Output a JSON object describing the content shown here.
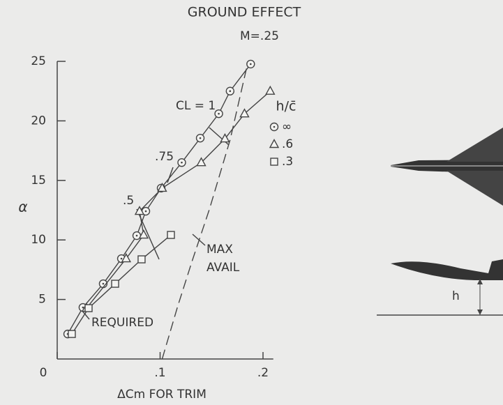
{
  "chart_data": {
    "type": "line",
    "title": "GROUND EFFECT",
    "subtitle": "M=.25",
    "x_label": "ΔCm FOR TRIM",
    "y_label": "α",
    "legend_title": "h/c̄",
    "xlim": [
      0,
      0.21
    ],
    "ylim": [
      0,
      25
    ],
    "xticks": [
      0,
      {
        "value": 0.1,
        "label": ".1"
      },
      {
        "value": 0.2,
        "label": ".2"
      }
    ],
    "yticks": [
      5,
      10,
      15,
      20,
      25
    ],
    "series": [
      {
        "name": "∞",
        "marker": "circle",
        "color": "#444",
        "x": [
          0.0102,
          0.025,
          0.0447,
          0.0624,
          0.0773,
          0.0861,
          0.101,
          0.121,
          0.139,
          0.157,
          0.168,
          0.188
        ],
        "values": [
          2.1,
          4.33,
          6.32,
          8.43,
          10.36,
          12.41,
          14.35,
          16.5,
          18.55,
          20.6,
          22.5,
          24.77
        ]
      },
      {
        "name": ".6",
        "marker": "triangle",
        "color": "#444",
        "x": [
          0.0285,
          0.067,
          0.084,
          0.08,
          0.102,
          0.14,
          0.163,
          0.182,
          0.207
        ],
        "values": [
          4.27,
          8.43,
          10.42,
          12.41,
          14.35,
          16.5,
          18.5,
          20.6,
          22.5
        ]
      },
      {
        "name": ".3",
        "marker": "square",
        "color": "#444",
        "x": [
          0.0142,
          0.0305,
          0.0563,
          0.082,
          0.1105
        ],
        "values": [
          2.1,
          4.27,
          6.32,
          8.37,
          10.42
        ]
      },
      {
        "name": "MAX AVAIL",
        "marker": "none",
        "dashed": true,
        "color": "#444",
        "x": [
          0.102,
          0.117,
          0.131,
          0.148,
          0.168,
          0.185
        ],
        "values": [
          0,
          4.4,
          8.2,
          12.6,
          18.4,
          24.8
        ]
      }
    ],
    "annotations": {
      "required": "REQUIRED",
      "max": "MAX",
      "avail": "AVAIL",
      "cl1": "CL = 1",
      "cl75": ".75",
      "cl5": ".5",
      "h": "h"
    }
  }
}
